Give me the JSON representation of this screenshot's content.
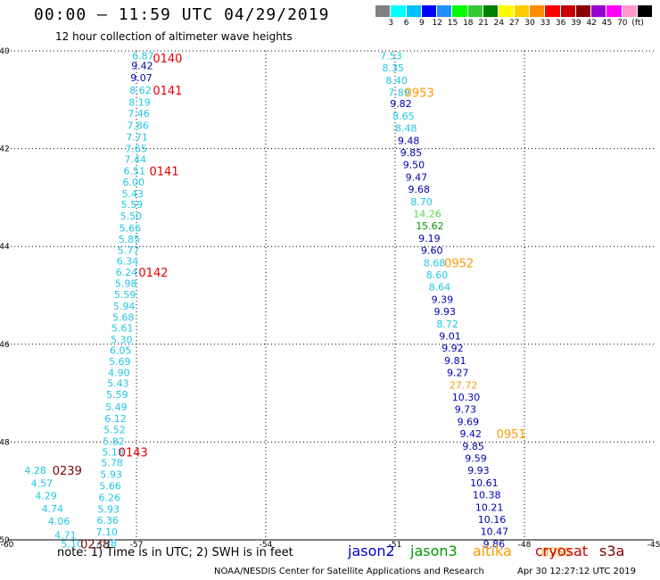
{
  "header": {
    "title": "00:00 – 11:59 UTC 04/29/2019",
    "subtitle": "12 hour collection of altimeter wave heights"
  },
  "color_scale": {
    "colors": [
      "#808080",
      "#00ffff",
      "#00bfff",
      "#0000ff",
      "#1e90ff",
      "#00ff00",
      "#32cd32",
      "#008000",
      "#ffff00",
      "#ffcc00",
      "#ff8c00",
      "#ff0000",
      "#cc0000",
      "#8b0000",
      "#9400d3",
      "#ff00ff",
      "#ff99cc",
      "#000000"
    ],
    "labels": [
      "3",
      "6",
      "9",
      "12",
      "15",
      "18",
      "21",
      "24",
      "27",
      "30",
      "33",
      "36",
      "39",
      "42",
      "45",
      "70",
      "(ft)"
    ]
  },
  "footer": {
    "note": "note: 1) Time is in UTC; 2) SWH is in feet",
    "satellites": [
      {
        "name": "jason2",
        "color": "#0000cc"
      },
      {
        "name": "jason3",
        "color": "#009900"
      },
      {
        "name": "altika",
        "color": "#ff9900"
      },
      {
        "name": "cryosat",
        "color": "#cc0000"
      },
      {
        "name": "s3a",
        "color": "#800000"
      }
    ],
    "credit": "NOAA/NESDIS Center for Satellite Applications and Research",
    "timestamp": "Apr 30 12:27:12 UTC 2019"
  },
  "chart_data": {
    "type": "scatter",
    "xlim": [
      -60,
      -45
    ],
    "ylim": [
      -50,
      -40
    ],
    "x_ticks": [
      -60,
      -57,
      -54,
      -51,
      -48,
      -45
    ],
    "y_ticks": [
      -40,
      -42,
      -44,
      -46,
      -48,
      -50
    ],
    "grid": true,
    "value_colors": {
      "light": "#1ec6e6",
      "dark": "#0000b4",
      "green": "#4cd94c",
      "darkgreen": "#009900",
      "orange": "#ff9900",
      "altika": "#ff9900",
      "cryosat": "#e60000",
      "s3a": "#800000"
    },
    "points": [
      {
        "lon": -57.1,
        "lat": -40.1,
        "v": "6.87",
        "c": "light"
      },
      {
        "lon": -57.12,
        "lat": -40.3,
        "v": "9.42",
        "c": "dark"
      },
      {
        "lon": -57.14,
        "lat": -40.55,
        "v": "9.07",
        "c": "dark"
      },
      {
        "lon": -57.16,
        "lat": -40.8,
        "v": "8.62",
        "c": "light"
      },
      {
        "lon": -57.18,
        "lat": -41.05,
        "v": "8.19",
        "c": "light"
      },
      {
        "lon": -57.2,
        "lat": -41.28,
        "v": "7.46",
        "c": "light"
      },
      {
        "lon": -57.22,
        "lat": -41.52,
        "v": "7.86",
        "c": "light"
      },
      {
        "lon": -57.24,
        "lat": -41.76,
        "v": "7.71",
        "c": "light"
      },
      {
        "lon": -57.26,
        "lat": -42.0,
        "v": "7.65",
        "c": "light"
      },
      {
        "lon": -57.28,
        "lat": -42.22,
        "v": "7.44",
        "c": "light"
      },
      {
        "lon": -57.3,
        "lat": -42.45,
        "v": "6.51",
        "c": "light"
      },
      {
        "lon": -57.32,
        "lat": -42.68,
        "v": "6.00",
        "c": "light"
      },
      {
        "lon": -57.34,
        "lat": -42.92,
        "v": "5.43",
        "c": "light"
      },
      {
        "lon": -57.36,
        "lat": -43.14,
        "v": "5.59",
        "c": "light"
      },
      {
        "lon": -57.38,
        "lat": -43.38,
        "v": "5.50",
        "c": "light"
      },
      {
        "lon": -57.4,
        "lat": -43.62,
        "v": "5.66",
        "c": "light"
      },
      {
        "lon": -57.42,
        "lat": -43.85,
        "v": "5.85",
        "c": "light"
      },
      {
        "lon": -57.44,
        "lat": -44.08,
        "v": "5.77",
        "c": "light"
      },
      {
        "lon": -57.46,
        "lat": -44.3,
        "v": "6.34",
        "c": "light"
      },
      {
        "lon": -57.48,
        "lat": -44.53,
        "v": "6.24",
        "c": "light"
      },
      {
        "lon": -57.5,
        "lat": -44.75,
        "v": "5.98",
        "c": "light"
      },
      {
        "lon": -57.52,
        "lat": -44.98,
        "v": "5.59",
        "c": "light"
      },
      {
        "lon": -57.54,
        "lat": -45.22,
        "v": "5.94",
        "c": "light"
      },
      {
        "lon": -57.56,
        "lat": -45.45,
        "v": "5.68",
        "c": "light"
      },
      {
        "lon": -57.58,
        "lat": -45.67,
        "v": "5.61",
        "c": "light"
      },
      {
        "lon": -57.6,
        "lat": -45.9,
        "v": "5.30",
        "c": "light"
      },
      {
        "lon": -57.62,
        "lat": -46.12,
        "v": "6.05",
        "c": "light"
      },
      {
        "lon": -57.64,
        "lat": -46.35,
        "v": "5.69",
        "c": "light"
      },
      {
        "lon": -57.66,
        "lat": -46.58,
        "v": "4.90",
        "c": "light"
      },
      {
        "lon": -57.68,
        "lat": -46.8,
        "v": "5.43",
        "c": "light"
      },
      {
        "lon": -57.7,
        "lat": -47.03,
        "v": "5.59",
        "c": "light"
      },
      {
        "lon": -57.72,
        "lat": -47.28,
        "v": "5.49",
        "c": "light"
      },
      {
        "lon": -57.74,
        "lat": -47.52,
        "v": "6.12",
        "c": "light"
      },
      {
        "lon": -57.76,
        "lat": -47.75,
        "v": "5.52",
        "c": "light"
      },
      {
        "lon": -57.78,
        "lat": -47.98,
        "v": "5.82",
        "c": "light"
      },
      {
        "lon": -57.8,
        "lat": -48.2,
        "v": "5.18",
        "c": "light"
      },
      {
        "lon": -57.82,
        "lat": -48.42,
        "v": "5.78",
        "c": "light"
      },
      {
        "lon": -57.84,
        "lat": -48.66,
        "v": "5.93",
        "c": "light"
      },
      {
        "lon": -57.86,
        "lat": -48.9,
        "v": "5.66",
        "c": "light"
      },
      {
        "lon": -57.88,
        "lat": -49.13,
        "v": "6.26",
        "c": "light"
      },
      {
        "lon": -57.9,
        "lat": -49.37,
        "v": "5.93",
        "c": "light"
      },
      {
        "lon": -57.92,
        "lat": -49.6,
        "v": "6.36",
        "c": "light"
      },
      {
        "lon": -57.94,
        "lat": -49.84,
        "v": "7.10",
        "c": "light"
      },
      {
        "lon": -57.96,
        "lat": -50.06,
        "v": "7.98",
        "c": "light"
      },
      {
        "lon": -59.6,
        "lat": -48.58,
        "v": "4.28",
        "c": "light"
      },
      {
        "lon": -59.45,
        "lat": -48.84,
        "v": "4.57",
        "c": "light"
      },
      {
        "lon": -59.35,
        "lat": -49.1,
        "v": "4.29",
        "c": "light"
      },
      {
        "lon": -59.2,
        "lat": -49.36,
        "v": "4.74",
        "c": "light"
      },
      {
        "lon": -59.05,
        "lat": -49.62,
        "v": "4.06",
        "c": "light"
      },
      {
        "lon": -58.9,
        "lat": -49.9,
        "v": "4.71",
        "c": "light"
      },
      {
        "lon": -58.75,
        "lat": -50.08,
        "v": "5.10",
        "c": "light"
      },
      {
        "lon": -51.35,
        "lat": -40.1,
        "v": "7.53",
        "c": "light"
      },
      {
        "lon": -51.3,
        "lat": -40.35,
        "v": "8.35",
        "c": "light"
      },
      {
        "lon": -51.22,
        "lat": -40.6,
        "v": "8.40",
        "c": "light"
      },
      {
        "lon": -51.16,
        "lat": -40.85,
        "v": "7.89",
        "c": "light"
      },
      {
        "lon": -51.12,
        "lat": -41.08,
        "v": "9.82",
        "c": "dark"
      },
      {
        "lon": -51.06,
        "lat": -41.33,
        "v": "8.65",
        "c": "light"
      },
      {
        "lon": -51.0,
        "lat": -41.58,
        "v": "8.48",
        "c": "light"
      },
      {
        "lon": -50.94,
        "lat": -41.83,
        "v": "9.48",
        "c": "dark"
      },
      {
        "lon": -50.88,
        "lat": -42.08,
        "v": "9.85",
        "c": "dark"
      },
      {
        "lon": -50.82,
        "lat": -42.33,
        "v": "9.50",
        "c": "dark"
      },
      {
        "lon": -50.76,
        "lat": -42.58,
        "v": "9.47",
        "c": "dark"
      },
      {
        "lon": -50.7,
        "lat": -42.83,
        "v": "9.68",
        "c": "dark"
      },
      {
        "lon": -50.64,
        "lat": -43.08,
        "v": "8.70",
        "c": "light"
      },
      {
        "lon": -50.58,
        "lat": -43.33,
        "v": "14.26",
        "c": "green"
      },
      {
        "lon": -50.52,
        "lat": -43.58,
        "v": "15.62",
        "c": "darkgreen"
      },
      {
        "lon": -50.46,
        "lat": -43.83,
        "v": "9.19",
        "c": "dark"
      },
      {
        "lon": -50.4,
        "lat": -44.08,
        "v": "9.60",
        "c": "dark"
      },
      {
        "lon": -50.34,
        "lat": -44.33,
        "v": "8.68",
        "c": "light"
      },
      {
        "lon": -50.28,
        "lat": -44.58,
        "v": "8.60",
        "c": "light"
      },
      {
        "lon": -50.22,
        "lat": -44.83,
        "v": "8.64",
        "c": "light"
      },
      {
        "lon": -50.16,
        "lat": -45.08,
        "v": "9.39",
        "c": "dark"
      },
      {
        "lon": -50.1,
        "lat": -45.33,
        "v": "9.93",
        "c": "dark"
      },
      {
        "lon": -50.04,
        "lat": -45.58,
        "v": "8.72",
        "c": "light"
      },
      {
        "lon": -49.98,
        "lat": -45.83,
        "v": "9.01",
        "c": "dark"
      },
      {
        "lon": -49.92,
        "lat": -46.08,
        "v": "9.92",
        "c": "dark"
      },
      {
        "lon": -49.86,
        "lat": -46.33,
        "v": "9.81",
        "c": "dark"
      },
      {
        "lon": -49.8,
        "lat": -46.58,
        "v": "9.27",
        "c": "dark"
      },
      {
        "lon": -49.74,
        "lat": -46.83,
        "v": "27.72",
        "c": "orange"
      },
      {
        "lon": -49.68,
        "lat": -47.08,
        "v": "10.30",
        "c": "dark"
      },
      {
        "lon": -49.62,
        "lat": -47.33,
        "v": "9.73",
        "c": "dark"
      },
      {
        "lon": -49.56,
        "lat": -47.58,
        "v": "9.69",
        "c": "dark"
      },
      {
        "lon": -49.5,
        "lat": -47.83,
        "v": "9.42",
        "c": "dark"
      },
      {
        "lon": -49.44,
        "lat": -48.08,
        "v": "9.85",
        "c": "dark"
      },
      {
        "lon": -49.38,
        "lat": -48.33,
        "v": "9.59",
        "c": "dark"
      },
      {
        "lon": -49.32,
        "lat": -48.58,
        "v": "9.93",
        "c": "dark"
      },
      {
        "lon": -49.26,
        "lat": -48.83,
        "v": "10.61",
        "c": "dark"
      },
      {
        "lon": -49.2,
        "lat": -49.08,
        "v": "10.38",
        "c": "dark"
      },
      {
        "lon": -49.14,
        "lat": -49.33,
        "v": "10.21",
        "c": "dark"
      },
      {
        "lon": -49.08,
        "lat": -49.58,
        "v": "10.16",
        "c": "dark"
      },
      {
        "lon": -49.02,
        "lat": -49.83,
        "v": "10.47",
        "c": "dark"
      },
      {
        "lon": -48.96,
        "lat": -50.08,
        "v": "9.86",
        "c": "dark"
      }
    ],
    "times": [
      {
        "lon": -56.62,
        "lat": -40.15,
        "t": "0140",
        "sat": "cryosat"
      },
      {
        "lon": -56.62,
        "lat": -40.8,
        "t": "0141",
        "sat": "cryosat"
      },
      {
        "lon": -56.7,
        "lat": -42.45,
        "t": "0141",
        "sat": "cryosat"
      },
      {
        "lon": -56.95,
        "lat": -44.53,
        "t": "0142",
        "sat": "cryosat"
      },
      {
        "lon": -57.42,
        "lat": -48.2,
        "t": "0143",
        "sat": "cryosat"
      },
      {
        "lon": -58.95,
        "lat": -48.58,
        "t": "0239",
        "sat": "s3a"
      },
      {
        "lon": -58.3,
        "lat": -50.08,
        "t": "0238",
        "sat": "s3a"
      },
      {
        "lon": -50.78,
        "lat": -40.85,
        "t": "0953",
        "sat": "altika"
      },
      {
        "lon": -49.86,
        "lat": -44.33,
        "t": "0952",
        "sat": "altika"
      },
      {
        "lon": -48.65,
        "lat": -47.83,
        "t": "0951",
        "sat": "altika"
      },
      {
        "lon": -47.6,
        "lat": -50.25,
        "t": "0950",
        "sat": "altika"
      }
    ]
  }
}
